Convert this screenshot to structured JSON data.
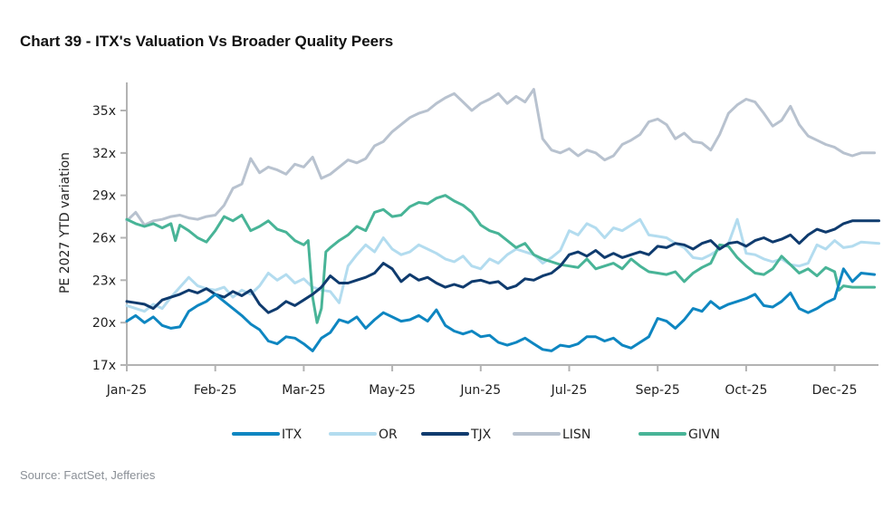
{
  "title": "Chart 39 - ITX's Valuation Vs Broader Quality Peers",
  "source": "Source: FactSet, Jefferies",
  "chart_data": {
    "type": "line",
    "title": "Chart 39 - ITX's Valuation Vs Broader Quality Peers",
    "xlabel": "",
    "ylabel": "PE 2027 YTD variation",
    "ylim": [
      17,
      37
    ],
    "yticks": [
      17,
      20,
      23,
      26,
      29,
      32,
      35
    ],
    "ytick_labels": [
      "17x",
      "20x",
      "23x",
      "26x",
      "29x",
      "32x",
      "35x"
    ],
    "xtick_labels": [
      "Jan-25",
      "Feb-25",
      "Mar-25",
      "May-25",
      "Jun-25",
      "Jul-25",
      "Sep-25",
      "Oct-25",
      "Dec-25"
    ],
    "x_range": [
      0,
      8.5
    ],
    "grid": false,
    "legend_position": "bottom",
    "series": [
      {
        "name": "ITX",
        "color": "#0e86c1",
        "x": [
          0,
          0.1,
          0.2,
          0.3,
          0.4,
          0.5,
          0.6,
          0.7,
          0.8,
          0.9,
          1.0,
          1.1,
          1.2,
          1.3,
          1.4,
          1.5,
          1.6,
          1.7,
          1.8,
          1.9,
          2.0,
          2.1,
          2.2,
          2.3,
          2.4,
          2.5,
          2.6,
          2.7,
          2.8,
          2.9,
          3.0,
          3.1,
          3.2,
          3.3,
          3.4,
          3.5,
          3.6,
          3.7,
          3.8,
          3.9,
          4.0,
          4.1,
          4.2,
          4.3,
          4.4,
          4.5,
          4.6,
          4.7,
          4.8,
          4.9,
          5.0,
          5.1,
          5.2,
          5.3,
          5.4,
          5.5,
          5.6,
          5.7,
          5.8,
          5.9,
          6.0,
          6.1,
          6.2,
          6.3,
          6.4,
          6.5,
          6.6,
          6.7,
          6.8,
          6.9,
          7.0,
          7.1,
          7.2,
          7.3,
          7.4,
          7.5,
          7.6,
          7.7,
          7.8,
          7.9,
          8.0,
          8.1,
          8.2,
          8.3,
          8.45
        ],
        "values": [
          20.1,
          20.5,
          20.0,
          20.4,
          19.8,
          19.6,
          19.7,
          20.8,
          21.2,
          21.5,
          22.0,
          21.5,
          21.0,
          20.5,
          19.9,
          19.5,
          18.7,
          18.5,
          19.0,
          18.9,
          18.5,
          18.0,
          18.9,
          19.3,
          20.2,
          20.0,
          20.4,
          19.6,
          20.2,
          20.7,
          20.4,
          20.1,
          20.2,
          20.5,
          20.1,
          20.9,
          19.8,
          19.4,
          19.2,
          19.4,
          19.0,
          19.1,
          18.6,
          18.4,
          18.6,
          18.9,
          18.5,
          18.1,
          18.0,
          18.4,
          18.3,
          18.5,
          19.0,
          19.0,
          18.7,
          18.9,
          18.4,
          18.2,
          18.6,
          19.0,
          20.3,
          20.1,
          19.6,
          20.2,
          21.0,
          20.8,
          21.5,
          21.0,
          21.3,
          21.5,
          21.7,
          22.0,
          21.2,
          21.1,
          21.5,
          22.1,
          21.0,
          20.7,
          21.0,
          21.4,
          21.7,
          23.8,
          22.9,
          23.5,
          23.4
        ]
      },
      {
        "name": "OR",
        "color": "#b3dcef",
        "x": [
          0,
          0.1,
          0.2,
          0.3,
          0.4,
          0.5,
          0.6,
          0.7,
          0.8,
          0.9,
          1.0,
          1.1,
          1.2,
          1.3,
          1.4,
          1.5,
          1.6,
          1.7,
          1.8,
          1.9,
          2.0,
          2.1,
          2.2,
          2.3,
          2.4,
          2.5,
          2.6,
          2.7,
          2.8,
          2.9,
          3.0,
          3.1,
          3.2,
          3.3,
          3.4,
          3.5,
          3.6,
          3.7,
          3.8,
          3.9,
          4.0,
          4.1,
          4.2,
          4.3,
          4.4,
          4.5,
          4.6,
          4.7,
          4.8,
          4.9,
          5.0,
          5.1,
          5.2,
          5.3,
          5.4,
          5.5,
          5.6,
          5.7,
          5.8,
          5.9,
          6.0,
          6.1,
          6.2,
          6.3,
          6.4,
          6.5,
          6.6,
          6.7,
          6.8,
          6.9,
          7.0,
          7.1,
          7.2,
          7.3,
          7.4,
          7.5,
          7.6,
          7.7,
          7.8,
          7.9,
          8.0,
          8.1,
          8.2,
          8.3,
          8.5
        ],
        "values": [
          21.2,
          21.0,
          20.8,
          21.3,
          21.0,
          21.8,
          22.5,
          23.2,
          22.6,
          22.4,
          22.3,
          22.5,
          21.8,
          22.3,
          22.0,
          22.6,
          23.5,
          23.0,
          23.4,
          22.8,
          23.1,
          22.5,
          22.3,
          22.2,
          21.4,
          24.0,
          24.8,
          25.5,
          25.0,
          26.0,
          25.2,
          24.8,
          25.0,
          25.5,
          25.2,
          24.9,
          24.5,
          24.3,
          24.7,
          24.0,
          23.8,
          24.5,
          24.2,
          24.8,
          25.2,
          25.0,
          24.8,
          24.2,
          24.6,
          25.1,
          26.5,
          26.2,
          27.0,
          26.7,
          26.0,
          26.7,
          26.5,
          26.9,
          27.3,
          26.2,
          26.1,
          26.0,
          25.6,
          25.3,
          24.6,
          24.5,
          24.8,
          25.2,
          25.6,
          27.3,
          24.9,
          24.8,
          24.5,
          24.3,
          24.5,
          24.1,
          24.0,
          24.2,
          25.5,
          25.2,
          25.8,
          25.3,
          25.4,
          25.7,
          25.6
        ]
      },
      {
        "name": "TJX",
        "color": "#0f3b6e",
        "x": [
          0,
          0.1,
          0.2,
          0.3,
          0.4,
          0.5,
          0.6,
          0.7,
          0.8,
          0.9,
          1.0,
          1.1,
          1.2,
          1.3,
          1.4,
          1.5,
          1.6,
          1.7,
          1.8,
          1.9,
          2.0,
          2.1,
          2.2,
          2.3,
          2.4,
          2.5,
          2.6,
          2.7,
          2.8,
          2.9,
          3.0,
          3.1,
          3.2,
          3.3,
          3.4,
          3.5,
          3.6,
          3.7,
          3.8,
          3.9,
          4.0,
          4.1,
          4.2,
          4.3,
          4.4,
          4.5,
          4.6,
          4.7,
          4.8,
          4.9,
          5.0,
          5.1,
          5.2,
          5.3,
          5.4,
          5.5,
          5.6,
          5.7,
          5.8,
          5.9,
          6.0,
          6.1,
          6.2,
          6.3,
          6.4,
          6.5,
          6.6,
          6.7,
          6.8,
          6.9,
          7.0,
          7.1,
          7.2,
          7.3,
          7.4,
          7.5,
          7.6,
          7.7,
          7.8,
          7.9,
          8.0,
          8.1,
          8.2,
          8.3,
          8.5
        ],
        "values": [
          21.5,
          21.4,
          21.3,
          21.0,
          21.6,
          21.8,
          22.0,
          22.3,
          22.1,
          22.4,
          22.0,
          21.8,
          22.2,
          21.9,
          22.3,
          21.3,
          20.7,
          21.0,
          21.5,
          21.2,
          21.6,
          22.0,
          22.5,
          23.3,
          22.8,
          22.8,
          23.0,
          23.2,
          23.5,
          24.2,
          23.8,
          22.9,
          23.4,
          23.0,
          23.2,
          22.8,
          22.5,
          22.7,
          22.5,
          22.9,
          23.0,
          22.8,
          22.9,
          22.4,
          22.6,
          23.1,
          23.0,
          23.3,
          23.5,
          24.0,
          24.8,
          25.0,
          24.7,
          25.1,
          24.6,
          24.9,
          24.6,
          24.8,
          25.0,
          24.8,
          25.4,
          25.3,
          25.6,
          25.5,
          25.2,
          25.6,
          25.8,
          25.2,
          25.6,
          25.7,
          25.4,
          25.8,
          26.0,
          25.7,
          25.9,
          26.2,
          25.6,
          26.2,
          26.6,
          26.4,
          26.6,
          27.0,
          27.2,
          27.2,
          27.2
        ]
      },
      {
        "name": "LISN",
        "color": "#b8c2cf",
        "x": [
          0,
          0.1,
          0.2,
          0.3,
          0.4,
          0.5,
          0.6,
          0.7,
          0.8,
          0.9,
          1.0,
          1.1,
          1.2,
          1.3,
          1.4,
          1.5,
          1.6,
          1.7,
          1.8,
          1.9,
          2.0,
          2.1,
          2.2,
          2.3,
          2.4,
          2.5,
          2.6,
          2.7,
          2.8,
          2.9,
          3.0,
          3.1,
          3.2,
          3.3,
          3.4,
          3.5,
          3.6,
          3.7,
          3.8,
          3.9,
          4.0,
          4.1,
          4.2,
          4.3,
          4.4,
          4.5,
          4.6,
          4.7,
          4.8,
          4.9,
          5.0,
          5.1,
          5.2,
          5.3,
          5.4,
          5.5,
          5.6,
          5.7,
          5.8,
          5.9,
          6.0,
          6.1,
          6.2,
          6.3,
          6.4,
          6.5,
          6.6,
          6.7,
          6.8,
          6.9,
          7.0,
          7.1,
          7.2,
          7.3,
          7.4,
          7.5,
          7.6,
          7.7,
          7.8,
          7.9,
          8.0,
          8.1,
          8.2,
          8.3,
          8.45
        ],
        "values": [
          27.2,
          27.8,
          26.9,
          27.2,
          27.3,
          27.5,
          27.6,
          27.4,
          27.3,
          27.5,
          27.6,
          28.3,
          29.5,
          29.8,
          31.6,
          30.6,
          31.0,
          30.8,
          30.5,
          31.2,
          31.0,
          31.7,
          30.2,
          30.5,
          31.0,
          31.5,
          31.3,
          31.6,
          32.5,
          32.8,
          33.5,
          34.0,
          34.5,
          34.8,
          35.0,
          35.5,
          35.9,
          36.2,
          35.6,
          35.0,
          35.5,
          35.8,
          36.2,
          35.5,
          36.0,
          35.6,
          36.5,
          33.0,
          32.2,
          32.0,
          32.3,
          31.8,
          32.2,
          32.0,
          31.5,
          31.8,
          32.6,
          32.9,
          33.3,
          34.2,
          34.4,
          34.0,
          33.0,
          33.4,
          32.8,
          32.7,
          32.2,
          33.3,
          34.8,
          35.4,
          35.8,
          35.6,
          34.8,
          33.9,
          34.3,
          35.3,
          34.0,
          33.2,
          32.9,
          32.6,
          32.4,
          32.0,
          31.8,
          32.0,
          32.0
        ]
      },
      {
        "name": "GIVN",
        "color": "#48b497",
        "x": [
          0,
          0.1,
          0.2,
          0.3,
          0.4,
          0.5,
          0.55,
          0.6,
          0.7,
          0.8,
          0.9,
          1.0,
          1.1,
          1.2,
          1.3,
          1.4,
          1.5,
          1.6,
          1.7,
          1.8,
          1.9,
          2.0,
          2.05,
          2.1,
          2.15,
          2.2,
          2.25,
          2.3,
          2.4,
          2.5,
          2.6,
          2.7,
          2.8,
          2.9,
          3.0,
          3.1,
          3.2,
          3.3,
          3.4,
          3.5,
          3.6,
          3.7,
          3.8,
          3.9,
          4.0,
          4.1,
          4.2,
          4.3,
          4.4,
          4.5,
          4.6,
          4.7,
          4.8,
          4.9,
          5.0,
          5.1,
          5.2,
          5.3,
          5.4,
          5.5,
          5.6,
          5.7,
          5.8,
          5.9,
          6.0,
          6.1,
          6.2,
          6.3,
          6.4,
          6.5,
          6.6,
          6.7,
          6.8,
          6.9,
          7.0,
          7.1,
          7.2,
          7.3,
          7.4,
          7.5,
          7.6,
          7.7,
          7.8,
          7.9,
          8.0,
          8.05,
          8.1,
          8.2,
          8.45
        ],
        "values": [
          27.3,
          27.0,
          26.8,
          27.0,
          26.7,
          27.0,
          25.8,
          26.9,
          26.5,
          26.0,
          25.7,
          26.5,
          27.5,
          27.2,
          27.6,
          26.5,
          26.8,
          27.2,
          26.6,
          26.4,
          25.8,
          25.5,
          25.8,
          21.8,
          20.0,
          21.0,
          25.0,
          25.3,
          25.8,
          26.2,
          26.8,
          26.5,
          27.8,
          28.0,
          27.5,
          27.6,
          28.2,
          28.5,
          28.4,
          28.8,
          29.0,
          28.6,
          28.3,
          27.8,
          26.9,
          26.5,
          26.3,
          25.8,
          25.3,
          25.6,
          24.8,
          24.5,
          24.3,
          24.1,
          24.0,
          23.9,
          24.5,
          23.8,
          24.0,
          24.2,
          23.8,
          24.5,
          24.0,
          23.6,
          23.5,
          23.4,
          23.6,
          22.9,
          23.5,
          23.9,
          24.2,
          25.5,
          25.4,
          24.6,
          24.0,
          23.5,
          23.4,
          23.8,
          24.7,
          24.1,
          23.5,
          23.8,
          23.3,
          23.9,
          23.6,
          22.3,
          22.6,
          22.5,
          22.5
        ]
      }
    ]
  }
}
